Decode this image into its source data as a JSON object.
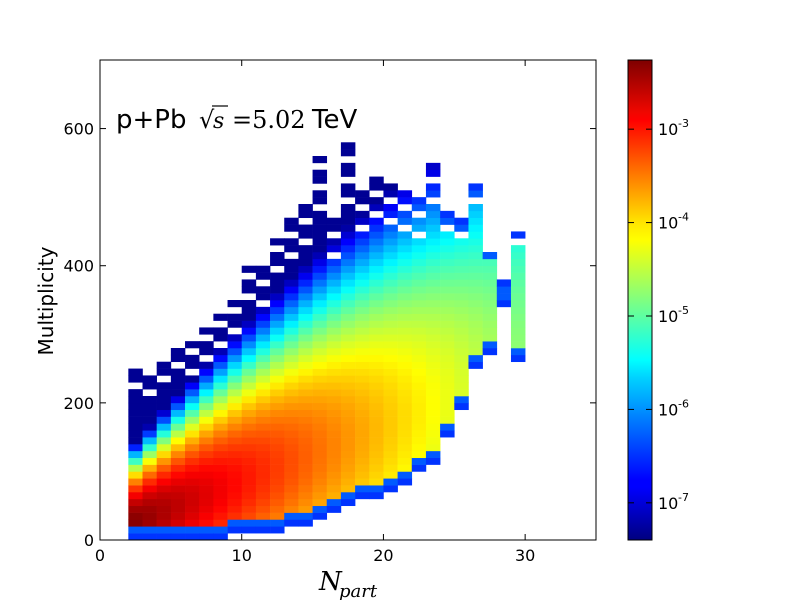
{
  "chart_data": {
    "type": "heatmap",
    "title": {
      "system": "p+Pb",
      "energy_prefix": "s",
      "energy_value": "=5.02",
      "energy_unit": "TeV"
    },
    "xlabel": {
      "main": "N",
      "sub": "part"
    },
    "ylabel": "Multiplicity",
    "xlim": [
      0,
      35
    ],
    "ylim": [
      0,
      700
    ],
    "xticks": [
      0,
      10,
      20,
      30
    ],
    "xtick_labels": [
      "0",
      "10",
      "20",
      "30"
    ],
    "yticks": [
      0,
      200,
      400,
      600
    ],
    "ytick_labels": [
      "0",
      "200",
      "400",
      "600"
    ],
    "colorbar": {
      "scale": "log",
      "range": [
        4e-08,
        0.0055
      ],
      "ticks": [
        1e-07,
        1e-06,
        1e-05,
        0.0001,
        0.001
      ],
      "tick_labels": [
        {
          "base": "10",
          "exp": "-7"
        },
        {
          "base": "10",
          "exp": "-6"
        },
        {
          "base": "10",
          "exp": "-5"
        },
        {
          "base": "10",
          "exp": "-4"
        },
        {
          "base": "10",
          "exp": "-3"
        }
      ]
    },
    "bins": {
      "x_start": 2,
      "x_width": 1,
      "y_width": 10,
      "description": "Per N_part column: [y_min, y_max] multiplicity extent of filled bins",
      "columns": [
        {
          "x": 2,
          "y_range": [
            0,
            250
          ]
        },
        {
          "x": 3,
          "y_range": [
            0,
            250
          ]
        },
        {
          "x": 4,
          "y_range": [
            0,
            270
          ]
        },
        {
          "x": 5,
          "y_range": [
            0,
            280
          ]
        },
        {
          "x": 6,
          "y_range": [
            0,
            290
          ]
        },
        {
          "x": 7,
          "y_range": [
            0,
            310
          ]
        },
        {
          "x": 8,
          "y_range": [
            0,
            330
          ]
        },
        {
          "x": 9,
          "y_range": [
            10,
            350
          ]
        },
        {
          "x": 10,
          "y_range": [
            10,
            400
          ]
        },
        {
          "x": 11,
          "y_range": [
            10,
            400
          ]
        },
        {
          "x": 12,
          "y_range": [
            10,
            440
          ]
        },
        {
          "x": 13,
          "y_range": [
            20,
            470
          ]
        },
        {
          "x": 14,
          "y_range": [
            20,
            490
          ]
        },
        {
          "x": 15,
          "y_range": [
            30,
            560
          ]
        },
        {
          "x": 16,
          "y_range": [
            40,
            470
          ]
        },
        {
          "x": 17,
          "y_range": [
            50,
            580
          ]
        },
        {
          "x": 18,
          "y_range": [
            60,
            520
          ]
        },
        {
          "x": 19,
          "y_range": [
            60,
            540
          ]
        },
        {
          "x": 20,
          "y_range": [
            70,
            520
          ]
        },
        {
          "x": 21,
          "y_range": [
            80,
            520
          ]
        },
        {
          "x": 22,
          "y_range": [
            100,
            500
          ]
        },
        {
          "x": 23,
          "y_range": [
            110,
            550
          ]
        },
        {
          "x": 24,
          "y_range": [
            150,
            480
          ]
        },
        {
          "x": 25,
          "y_range": [
            190,
            470
          ]
        },
        {
          "x": 26,
          "y_range": [
            250,
            520
          ]
        },
        {
          "x": 27,
          "y_range": [
            270,
            430
          ]
        },
        {
          "x": 28,
          "y_range": [
            340,
            380
          ]
        },
        {
          "x": 29,
          "y_range": [
            260,
            450
          ]
        }
      ],
      "peak": {
        "x": 2,
        "y": 0,
        "value": 0.005
      },
      "ridge": "density maximum follows multiplicity ≈ 8 × N_part, decreasing with N_part"
    }
  }
}
